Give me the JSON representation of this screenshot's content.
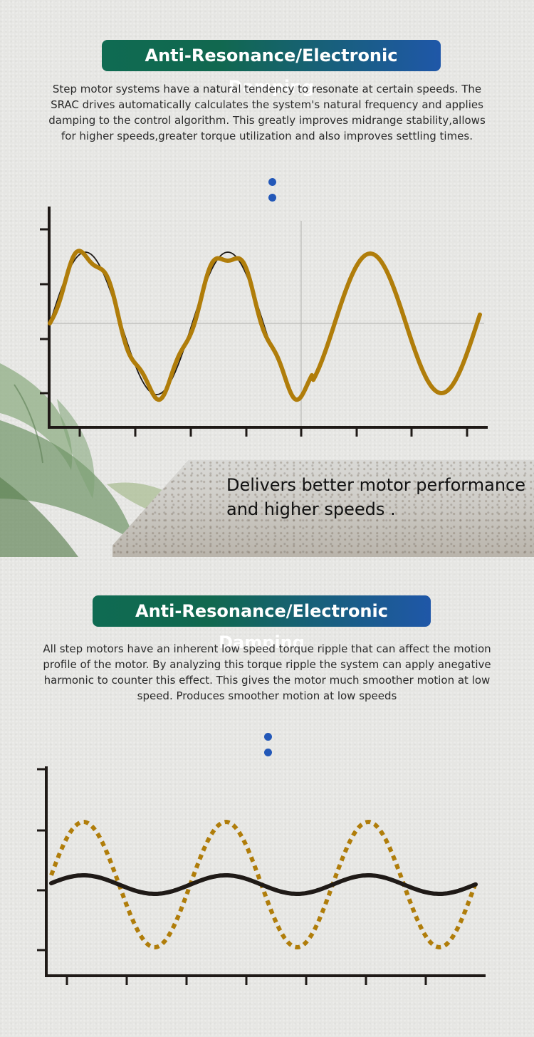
{
  "section1": {
    "title": "Anti-Resonance/Electronic Damping",
    "description": "Step motor systems have a natural tendency to resonate at certain speeds. The SRAC drives automatically calculates the system's natural frequency and applies damping to the control algorithm. This greatly improves midrange stability,allows for higher speeds,greater torque utilization and also improves settling times.",
    "tagline": "Delivers better motor performance and higher speeds ."
  },
  "section2": {
    "title": "Anti-Resonance/Electronic Damping",
    "description": "All step motors have an inherent low speed torque ripple that can affect the motion profile of the motor. By analyzing this torque ripple the system can apply anegative harmonic to counter this effect. This gives the motor much smoother motion at low speed. Produces smoother motion at low speeds"
  },
  "colors": {
    "banner_start": "#0f6b52",
    "banner_end": "#1f57a8",
    "wave_gold": "#b07d0a",
    "axis": "#1f1a17",
    "dot_blue": "#2358b8"
  },
  "chart_data": [
    {
      "type": "line",
      "title": "",
      "series": [
        {
          "values": [
            0,
            1,
            0,
            -1,
            0,
            1,
            0,
            -1,
            0,
            1,
            0,
            -1,
            0
          ]
        },
        {
          "values": [
            0,
            1,
            0,
            -1,
            0,
            1,
            0,
            -1,
            0
          ]
        }
      ]
    },
    {
      "type": "line",
      "title": "",
      "series": [
        {
          "values": [
            0,
            1,
            0,
            -1,
            0,
            1,
            0,
            -1,
            0,
            1,
            0,
            -1,
            0
          ]
        },
        {
          "values": [
            0,
            0.25,
            0,
            -0.25,
            0,
            0.25,
            0,
            -0.25,
            0,
            0.25,
            0,
            -0.25,
            0
          ]
        }
      ]
    }
  ]
}
